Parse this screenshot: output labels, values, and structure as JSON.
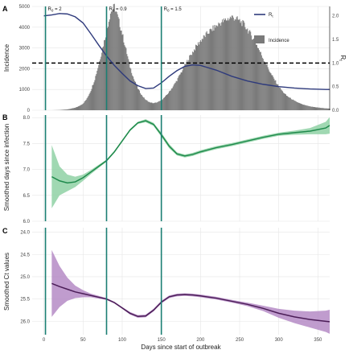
{
  "figure": {
    "colors": {
      "teal": "#1b7f73",
      "incidence": "#7a7a7a",
      "rt_line": "#2e3a7c",
      "green": "#1f8a4c",
      "green_band": "#8fd1a5",
      "purple": "#4b1d57",
      "purple_band": "#b58bc6",
      "grid": "#e6e6e6"
    },
    "x_axis_label": "Days since start of outbreak",
    "x_ticks": [
      "0",
      "50",
      "100",
      "150",
      "200",
      "250",
      "300",
      "350"
    ],
    "vertical_lines": [
      {
        "day": 2,
        "label_main": "R",
        "label_sub": "0",
        "label_rest": " = 2"
      },
      {
        "day": 80,
        "label_main": "R",
        "label_sub": "0",
        "label_rest": " = 0.9"
      },
      {
        "day": 150,
        "label_main": "R",
        "label_sub": "0",
        "label_rest": " = 1.5"
      }
    ]
  },
  "chart_data": [
    {
      "panel": "A",
      "type": "bar",
      "ylabel": "Incidence",
      "y2label": "Rt",
      "ylim": [
        0,
        5000
      ],
      "y2lim": [
        0,
        2.2
      ],
      "y_ticks": [
        "0",
        "1000",
        "2000",
        "3000",
        "4000",
        "5000"
      ],
      "y2_ticks": [
        "0.0",
        "0.5",
        "1.0",
        "1.5",
        "2.0"
      ],
      "dashed_reference_rt": 1.0,
      "legend": [
        {
          "label_main": "R",
          "label_sub": "t",
          "kind": "line"
        },
        {
          "label": "Incidence",
          "kind": "bar"
        }
      ],
      "series": [
        {
          "name": "Incidence",
          "kind": "bar",
          "x": [
            0,
            10,
            20,
            30,
            40,
            45,
            50,
            55,
            60,
            65,
            70,
            75,
            80,
            85,
            90,
            95,
            100,
            105,
            110,
            115,
            120,
            125,
            130,
            135,
            140,
            145,
            150,
            155,
            160,
            165,
            170,
            175,
            180,
            185,
            190,
            195,
            200,
            205,
            210,
            215,
            220,
            225,
            230,
            235,
            240,
            245,
            250,
            255,
            260,
            265,
            270,
            275,
            280,
            285,
            290,
            295,
            300,
            305,
            310,
            320,
            330,
            340,
            350,
            360,
            365
          ],
          "y": [
            0,
            0,
            10,
            40,
            120,
            200,
            320,
            560,
            950,
            1500,
            2200,
            3000,
            3800,
            4700,
            5000,
            4400,
            3700,
            2900,
            2100,
            1500,
            1050,
            720,
            500,
            380,
            340,
            380,
            480,
            650,
            880,
            1150,
            1450,
            1800,
            2150,
            2500,
            2800,
            3100,
            3350,
            3550,
            3750,
            3900,
            4050,
            4200,
            4300,
            4400,
            4500,
            4420,
            4300,
            4150,
            3900,
            3600,
            3300,
            2900,
            2500,
            2150,
            1750,
            1450,
            1150,
            900,
            700,
            450,
            280,
            180,
            130,
            90,
            80
          ]
        },
        {
          "name": "Rt",
          "kind": "line",
          "x": [
            0,
            10,
            20,
            30,
            40,
            50,
            60,
            70,
            80,
            90,
            100,
            110,
            120,
            130,
            140,
            150,
            160,
            170,
            180,
            190,
            200,
            220,
            240,
            260,
            280,
            300,
            320,
            340,
            360,
            365
          ],
          "y": [
            2.0,
            2.02,
            2.05,
            2.04,
            1.98,
            1.85,
            1.62,
            1.38,
            1.15,
            0.95,
            0.78,
            0.62,
            0.52,
            0.46,
            0.47,
            0.58,
            0.72,
            0.84,
            0.93,
            0.96,
            0.95,
            0.85,
            0.72,
            0.62,
            0.55,
            0.5,
            0.47,
            0.45,
            0.44,
            0.44
          ]
        }
      ]
    },
    {
      "panel": "B",
      "type": "line",
      "ylabel": "Smoothed days since infection",
      "ylim": [
        6.0,
        8.05
      ],
      "y_ticks": [
        "6.0",
        "6.5",
        "7.0",
        "7.5",
        "8.0"
      ],
      "series": [
        {
          "name": "",
          "x": [
            10,
            20,
            30,
            40,
            50,
            60,
            70,
            80,
            90,
            100,
            110,
            120,
            130,
            140,
            150,
            160,
            170,
            180,
            190,
            200,
            220,
            240,
            260,
            280,
            300,
            320,
            340,
            360,
            365
          ],
          "y": [
            6.86,
            6.78,
            6.74,
            6.76,
            6.84,
            6.95,
            7.06,
            7.17,
            7.34,
            7.55,
            7.76,
            7.9,
            7.94,
            7.87,
            7.67,
            7.45,
            7.3,
            7.26,
            7.29,
            7.34,
            7.42,
            7.48,
            7.55,
            7.62,
            7.68,
            7.71,
            7.74,
            7.8,
            7.85
          ],
          "lower": [
            6.25,
            6.5,
            6.58,
            6.66,
            6.78,
            6.91,
            7.03,
            7.15,
            7.32,
            7.53,
            7.74,
            7.88,
            7.91,
            7.84,
            7.63,
            7.41,
            7.27,
            7.23,
            7.26,
            7.31,
            7.39,
            7.45,
            7.52,
            7.59,
            7.65,
            7.67,
            7.68,
            7.68,
            7.69
          ],
          "upper": [
            7.47,
            7.06,
            6.9,
            6.86,
            6.9,
            6.99,
            7.09,
            7.19,
            7.36,
            7.57,
            7.78,
            7.92,
            7.97,
            7.9,
            7.71,
            7.49,
            7.33,
            7.29,
            7.32,
            7.37,
            7.45,
            7.51,
            7.58,
            7.65,
            7.71,
            7.75,
            7.8,
            7.92,
            8.01
          ]
        }
      ]
    },
    {
      "panel": "C",
      "type": "line",
      "ylabel": "Smoothed Ct values",
      "ylim": [
        26.3,
        23.9
      ],
      "y_ticks": [
        "24.0",
        "24.5",
        "25.0",
        "25.5",
        "26.0"
      ],
      "series": [
        {
          "name": "",
          "x": [
            10,
            20,
            30,
            40,
            50,
            60,
            70,
            80,
            90,
            100,
            110,
            120,
            130,
            140,
            150,
            160,
            170,
            180,
            190,
            200,
            220,
            240,
            260,
            280,
            300,
            320,
            340,
            360,
            365
          ],
          "y": [
            25.15,
            25.22,
            25.28,
            25.34,
            25.38,
            25.42,
            25.46,
            25.5,
            25.58,
            25.7,
            25.82,
            25.89,
            25.88,
            25.75,
            25.57,
            25.45,
            25.41,
            25.4,
            25.41,
            25.43,
            25.48,
            25.55,
            25.62,
            25.71,
            25.82,
            25.9,
            25.96,
            26.0,
            26.01
          ],
          "lower": [
            24.4,
            24.76,
            25.02,
            25.2,
            25.3,
            25.38,
            25.43,
            25.48,
            25.56,
            25.68,
            25.79,
            25.86,
            25.85,
            25.72,
            25.54,
            25.42,
            25.38,
            25.37,
            25.38,
            25.4,
            25.45,
            25.52,
            25.58,
            25.65,
            25.72,
            25.76,
            25.78,
            25.76,
            25.74
          ],
          "upper": [
            25.9,
            25.68,
            25.54,
            25.48,
            25.46,
            25.46,
            25.49,
            25.52,
            25.6,
            25.72,
            25.85,
            25.92,
            25.91,
            25.78,
            25.6,
            25.48,
            25.44,
            25.43,
            25.44,
            25.46,
            25.51,
            25.58,
            25.66,
            25.77,
            25.92,
            26.04,
            26.14,
            26.24,
            26.28
          ]
        }
      ]
    }
  ]
}
